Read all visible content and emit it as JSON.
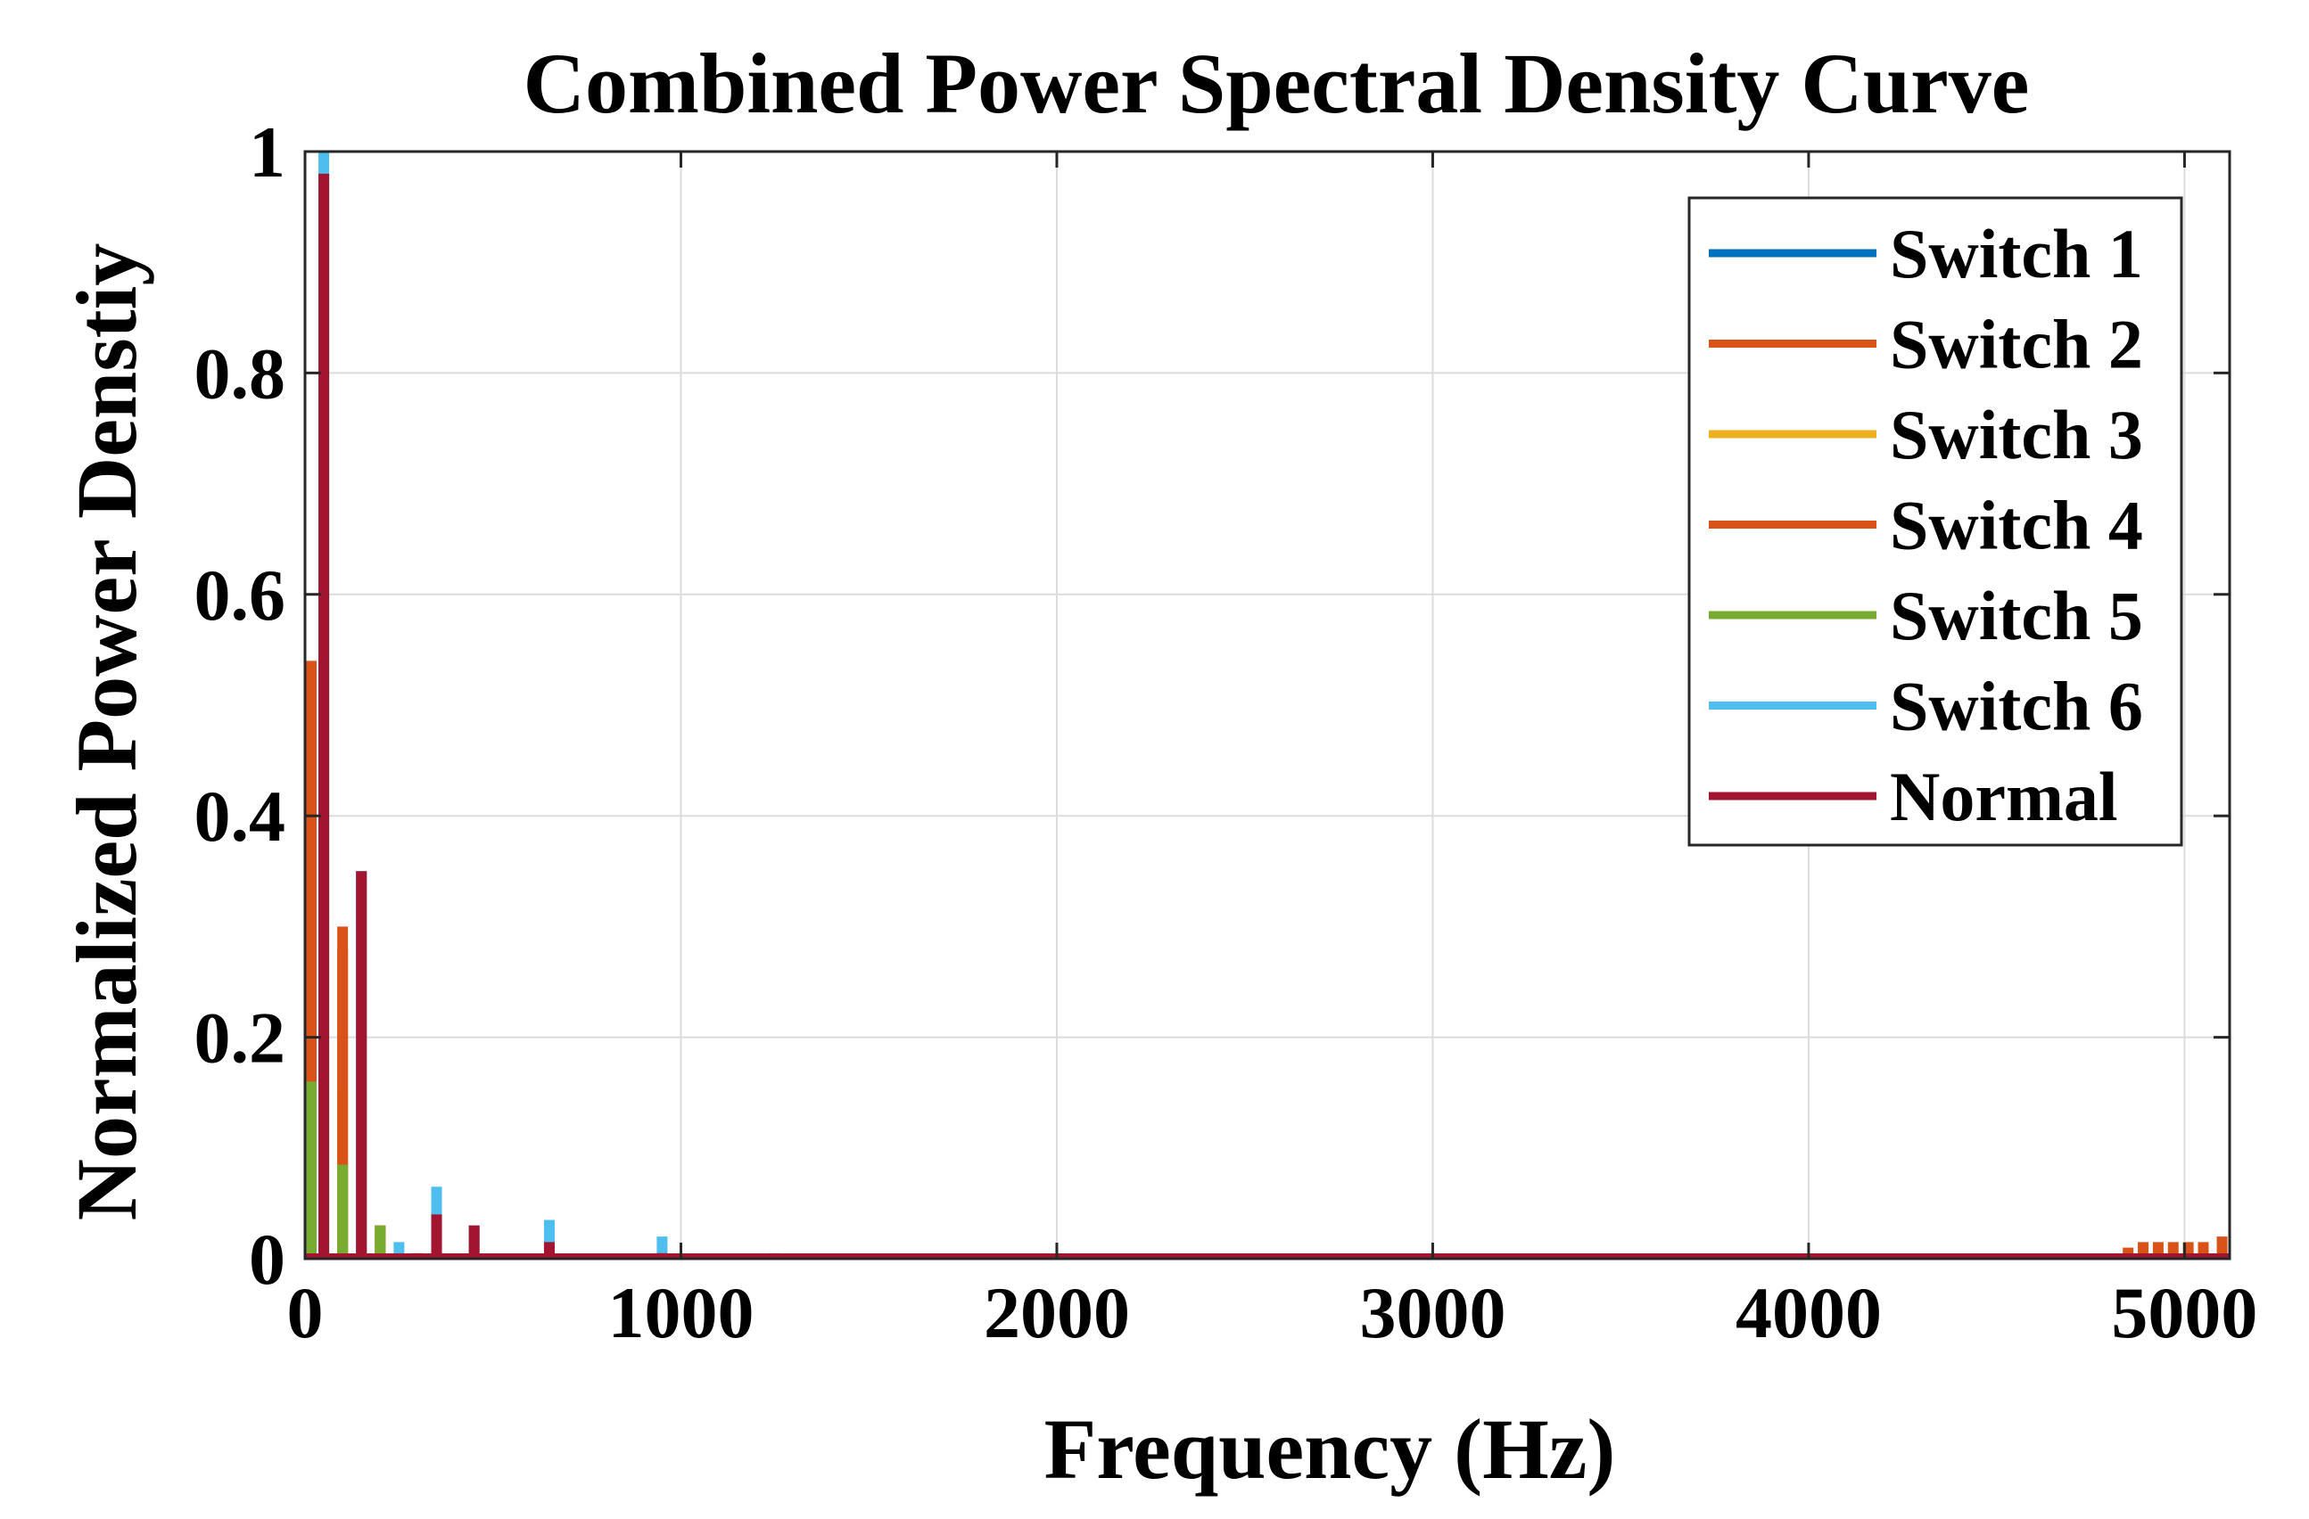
{
  "chart_data": {
    "type": "bar",
    "title": "Combined Power Spectral Density Curve",
    "xlabel": "Frequency (Hz)",
    "ylabel": "Normalized Power Denstiy",
    "xlim": [
      0,
      5120
    ],
    "ylim": [
      0,
      1
    ],
    "grid": true,
    "legend_position": "top-right",
    "x_ticks": [
      {
        "value": 0,
        "label": "0"
      },
      {
        "value": 1000,
        "label": "1000"
      },
      {
        "value": 2000,
        "label": "2000"
      },
      {
        "value": 3000,
        "label": "3000"
      },
      {
        "value": 4000,
        "label": "4000"
      },
      {
        "value": 5000,
        "label": "5000"
      }
    ],
    "y_ticks": [
      {
        "value": 0,
        "label": "0"
      },
      {
        "value": 0.2,
        "label": "0.2"
      },
      {
        "value": 0.4,
        "label": "0.4"
      },
      {
        "value": 0.6,
        "label": "0.6"
      },
      {
        "value": 0.8,
        "label": "0.8"
      },
      {
        "value": 1,
        "label": "1"
      }
    ],
    "series": [
      {
        "name": "Switch 1",
        "color": "#0072BD",
        "points": [
          [
            50,
            0.98
          ],
          [
            150,
            0.35
          ],
          [
            350,
            0.04
          ],
          [
            450,
            0.03
          ]
        ]
      },
      {
        "name": "Switch 2",
        "color": "#D95319",
        "points": [
          [
            0,
            0.54
          ],
          [
            100,
            0.3
          ],
          [
            200,
            0.03
          ],
          [
            300,
            0.005
          ],
          [
            4850,
            0.01
          ],
          [
            4890,
            0.015
          ],
          [
            4930,
            0.015
          ],
          [
            4970,
            0.015
          ],
          [
            5010,
            0.015
          ],
          [
            5050,
            0.015
          ],
          [
            5100,
            0.02
          ]
        ]
      },
      {
        "name": "Switch 3",
        "color": "#EDB120",
        "points": [
          [
            0,
            0.3
          ],
          [
            100,
            0.15
          ],
          [
            200,
            0.02
          ]
        ]
      },
      {
        "name": "Switch 4",
        "color": "#D95319",
        "points": [
          [
            0,
            0.5
          ],
          [
            100,
            0.28
          ],
          [
            200,
            0.03
          ]
        ]
      },
      {
        "name": "Switch 5",
        "color": "#77AC30",
        "points": [
          [
            0,
            0.16
          ],
          [
            100,
            0.085
          ],
          [
            200,
            0.03
          ]
        ]
      },
      {
        "name": "Switch 6",
        "color": "#4DBEEE",
        "points": [
          [
            50,
            1.0
          ],
          [
            150,
            0.35
          ],
          [
            250,
            0.015
          ],
          [
            350,
            0.065
          ],
          [
            650,
            0.035
          ],
          [
            950,
            0.02
          ],
          [
            1250,
            0.005
          ]
        ]
      },
      {
        "name": "Normal",
        "color": "#A2142F",
        "points": [
          [
            50,
            0.98
          ],
          [
            150,
            0.35
          ],
          [
            350,
            0.04
          ],
          [
            450,
            0.03
          ],
          [
            650,
            0.015
          ],
          [
            750,
            0.004
          ],
          [
            950,
            0.005
          ]
        ]
      }
    ]
  }
}
